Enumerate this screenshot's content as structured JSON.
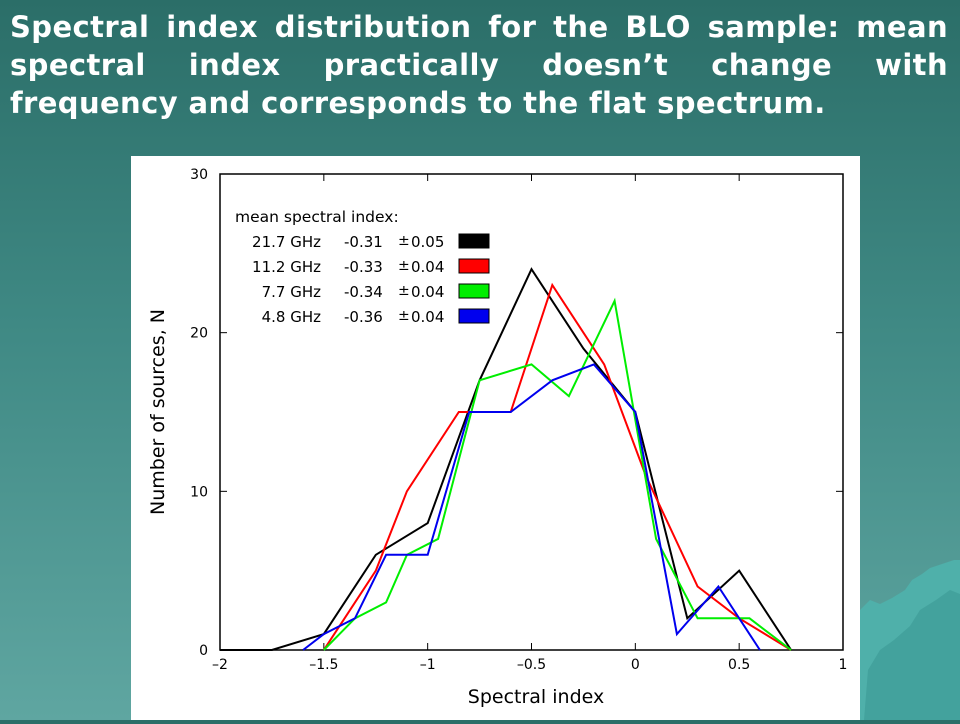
{
  "slide": {
    "title": "Spectral index distribution for the BLO sample: mean spectral index practically doesn’t change with frequency and corresponds to the flat spectrum."
  },
  "chart_data": {
    "type": "line",
    "xlabel": "Spectral index",
    "ylabel": "Number of sources, N",
    "xlim": [
      -2,
      1
    ],
    "ylim": [
      0,
      30
    ],
    "x_ticks": [
      -2,
      -1.5,
      -1,
      -0.5,
      0,
      0.5,
      1
    ],
    "x_tick_labels": [
      "–2",
      "–1.5",
      "–1",
      "–0.5",
      "0",
      "0.5",
      "1"
    ],
    "y_ticks": [
      0,
      10,
      20,
      30
    ],
    "y_tick_labels": [
      "0",
      "10",
      "20",
      "30"
    ],
    "grid": false,
    "legend": {
      "position": "top-left",
      "title": "mean spectral index:",
      "pm_symbol": "±"
    },
    "series": [
      {
        "name": "21.7 GHz",
        "mean": "-0.31",
        "err": "0.05",
        "color": "#000000",
        "x": [
          -2,
          -1.75,
          -1.5,
          -1.25,
          -1,
          -0.75,
          -0.5,
          -0.25,
          0,
          0.25,
          0.5,
          0.75
        ],
        "y": [
          0,
          0,
          1,
          6,
          8,
          17,
          24,
          19,
          15,
          2,
          5,
          0
        ]
      },
      {
        "name": "11.2 GHz",
        "mean": "-0.33",
        "err": "0.04",
        "color": "#ff0000",
        "x": [
          -1.5,
          -1.4,
          -1.25,
          -1.1,
          -0.85,
          -0.6,
          -0.4,
          -0.15,
          0.05,
          0.3,
          0.5,
          0.75
        ],
        "y": [
          0,
          2,
          5,
          10,
          15,
          15,
          23,
          18,
          11,
          4,
          2,
          0
        ]
      },
      {
        "name": "7.7 GHz",
        "mean": "-0.34",
        "err": "0.04",
        "color": "#00ee00",
        "x": [
          -1.5,
          -1.35,
          -1.2,
          -1.1,
          -0.95,
          -0.75,
          -0.5,
          -0.32,
          -0.1,
          0.1,
          0.3,
          0.55,
          0.75
        ],
        "y": [
          0,
          2,
          3,
          6,
          7,
          17,
          18,
          16,
          22,
          7,
          2,
          2,
          0
        ]
      },
      {
        "name": "4.8 GHz",
        "mean": "-0.36",
        "err": "0.04",
        "color": "#0000ee",
        "x": [
          -1.6,
          -1.5,
          -1.35,
          -1.2,
          -1,
          -0.8,
          -0.6,
          -0.4,
          -0.2,
          0,
          0.2,
          0.4,
          0.6
        ],
        "y": [
          0,
          1,
          2,
          6,
          6,
          15,
          15,
          17,
          18,
          15,
          1,
          4,
          0
        ]
      }
    ]
  }
}
